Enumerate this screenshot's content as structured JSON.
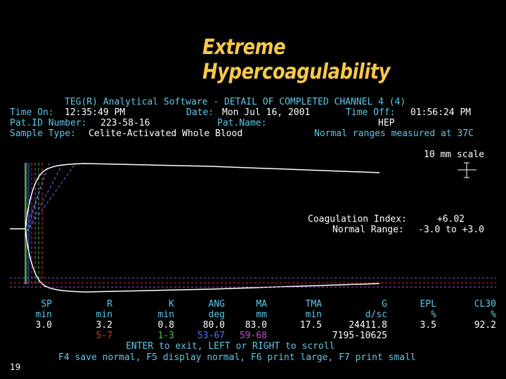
{
  "slide_title": "Extreme Hypercoagulability",
  "slide_number": "19",
  "header": {
    "software_title": "TEG(R) Analytical Software - DETAIL OF COMPLETED CHANNEL 4 (4)",
    "time_on_label": "Time On:",
    "time_on_value": "12:35:49 PM",
    "date_label": "Date:",
    "date_value": "Mon Jul 16, 2001",
    "time_off_label": "Time Off:",
    "time_off_value": "01:56:24 PM",
    "pat_id_label": "Pat.ID Number:",
    "pat_id_value": "223-58-16",
    "pat_name_label": "Pat.Name:",
    "pat_name_value": "HEP",
    "sample_type_label": "Sample Type:",
    "sample_type_value": "Celite-Activated Whole Blood",
    "normal_ranges_note": "Normal ranges measured at 37C",
    "scale_label": "10 mm scale"
  },
  "coagulation": {
    "index_label": "Coagulation Index:",
    "index_value": "+6.02",
    "range_label": "Normal Range:",
    "range_value": "-3.0 to +3.0"
  },
  "parameters": [
    {
      "name": "SP",
      "unit": "min",
      "value": "3.0",
      "range": "",
      "range_color": "#d83030"
    },
    {
      "name": "R",
      "unit": "min",
      "value": "3.2",
      "range": "5-7",
      "range_color": "#d83030"
    },
    {
      "name": "K",
      "unit": "min",
      "value": "0.8",
      "range": "1-3",
      "range_color": "#3ecb3e"
    },
    {
      "name": "ANG",
      "unit": "deg",
      "value": "80.0",
      "range": "53-67",
      "range_color": "#5a6cff"
    },
    {
      "name": "MA",
      "unit": "mm",
      "value": "83.0",
      "range": "59-68",
      "range_color": "#c050d0"
    },
    {
      "name": "TMA",
      "unit": "min",
      "value": "17.5",
      "range": "",
      "range_color": "#d83030"
    },
    {
      "name": "G",
      "unit": "d/sc",
      "value": "24411.8",
      "range": "7195-10625",
      "range_color": "#ffffff"
    },
    {
      "name": "EPL",
      "unit": "%",
      "value": "3.5",
      "range": "",
      "range_color": "#d83030"
    },
    {
      "name": "CL30",
      "unit": "%",
      "value": "92.2",
      "range": "",
      "range_color": "#d83030"
    }
  ],
  "footer": {
    "line1": "ENTER to exit, LEFT or RIGHT to scroll",
    "line2": "F4 save normal, F5 display normal, F6 print large, F7 print small"
  },
  "colors": {
    "title": "#f5c84a",
    "label": "#5fc8e8",
    "value": "#ffffff",
    "trace": "#ffffff",
    "dashed": "#6c6cff"
  }
}
